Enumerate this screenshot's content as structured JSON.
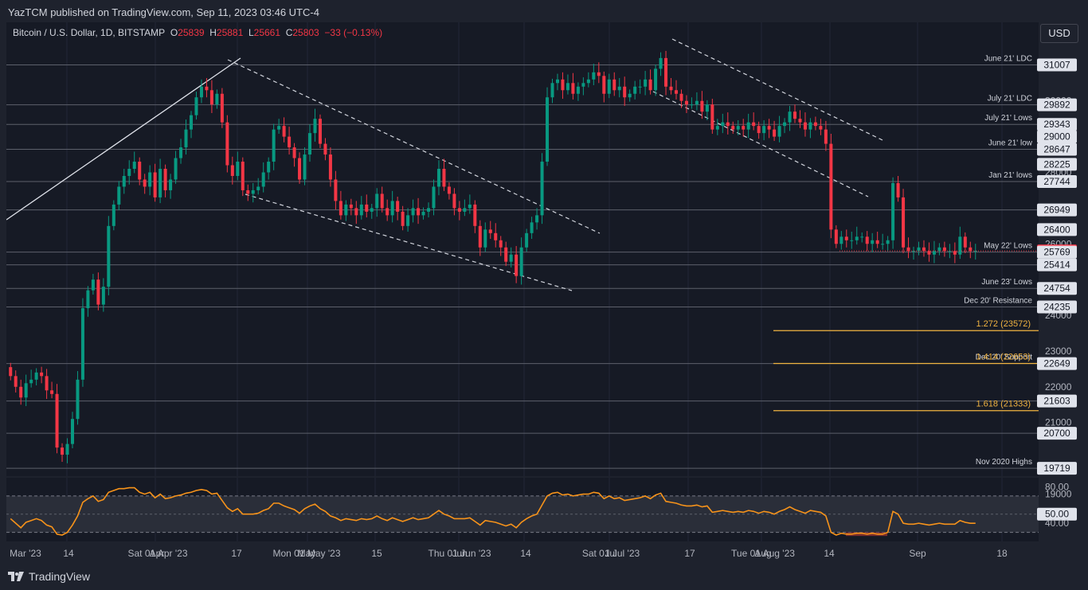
{
  "header": {
    "publisher": "YazTCM published on TradingView.com, Sep 11, 2023 03:46 UTC-4"
  },
  "legend": {
    "symbol": "Bitcoin / U.S. Dollar, 1D, BITSTAMP",
    "o_label": "O",
    "o": "25839",
    "h_label": "H",
    "h": "25881",
    "l_label": "L",
    "l": "25661",
    "c_label": "C",
    "c": "25803",
    "change": "−33 (−0.13%)"
  },
  "currency_button": "USD",
  "brand": "TradingView",
  "colors": {
    "up": "#089981",
    "down": "#f23645",
    "fib": "#f0b341",
    "rsi": "#f7931a",
    "level": "#787b86"
  },
  "chart_data": {
    "type": "candlestick",
    "price_axis": {
      "min": 19500,
      "max": 32200,
      "ticks": [
        30000,
        29000,
        28000,
        26000,
        24000,
        23000,
        22000,
        21000,
        19000
      ]
    },
    "time_axis": {
      "labels": [
        "Mar '23",
        "14",
        "Apr",
        "Sat 01 Apr '23",
        "17",
        "May",
        "Mon 01 May '23",
        "15",
        "Jun",
        "Thu 01 Jun '23",
        "14",
        "Jul",
        "Sat 01 Jul '23",
        "17",
        "Aug",
        "Tue 01 Aug '23",
        "14",
        "Sep",
        "18"
      ]
    },
    "last_price": 25803,
    "levels": [
      {
        "price": 31007,
        "label": "June 21' LDC"
      },
      {
        "price": 29892,
        "label": "July 21' LDC"
      },
      {
        "price": 29343,
        "label": "July 21' Lows"
      },
      {
        "price": 28647,
        "label": "June 21' low"
      },
      {
        "price": 27744,
        "label": "Jan 21' lows"
      },
      {
        "price": 26949,
        "label": ""
      },
      {
        "price": 25769,
        "label": "May 22' Lows"
      },
      {
        "price": 25414,
        "label": ""
      },
      {
        "price": 24754,
        "label": "June 23' Lows"
      },
      {
        "price": 24235,
        "label": "Dec 20' Resistance"
      },
      {
        "price": 22649,
        "label": "Dec 20' Support"
      },
      {
        "price": 21603,
        "label": ""
      },
      {
        "price": 20700,
        "label": ""
      },
      {
        "price": 19719,
        "label": "Nov 2020 Highs"
      }
    ],
    "price_boxes": [
      "31007",
      "29892",
      "29343",
      "29000",
      "28647",
      "28225",
      "27744",
      "26949",
      "26400",
      "25803",
      "25769",
      "25414",
      "24754",
      "24235",
      "22649",
      "21603",
      "20700",
      "19719"
    ],
    "fib_levels": [
      {
        "ratio": "1.272",
        "price": 23572,
        "label": "1.272 (23572)"
      },
      {
        "ratio": "1.414",
        "price": 22653,
        "label": "1.414 (22653)"
      },
      {
        "ratio": "1.618",
        "price": 21333,
        "label": "1.618 (21333)"
      }
    ],
    "closes": [
      22300,
      22000,
      21700,
      22100,
      22200,
      22400,
      22300,
      21900,
      21800,
      20300,
      20100,
      20400,
      21100,
      22200,
      24200,
      24700,
      25000,
      24300,
      24800,
      26500,
      27100,
      27600,
      27900,
      28100,
      28300,
      27800,
      27600,
      28000,
      27300,
      28100,
      27500,
      27800,
      28400,
      28700,
      29200,
      29600,
      30100,
      30400,
      30300,
      29900,
      30200,
      29400,
      28200,
      27900,
      28300,
      27500,
      27400,
      27500,
      27600,
      28000,
      28300,
      29200,
      29300,
      29000,
      28700,
      28400,
      27800,
      28500,
      29100,
      29500,
      28800,
      28500,
      27800,
      27200,
      26800,
      27100,
      27000,
      26800,
      27100,
      26900,
      27000,
      27400,
      27000,
      26800,
      27200,
      26900,
      26500,
      26800,
      27000,
      26800,
      26900,
      27000,
      27600,
      28100,
      27600,
      27400,
      27000,
      26900,
      27000,
      27100,
      26500,
      25900,
      26400,
      26300,
      26100,
      25900,
      25500,
      25700,
      25100,
      25900,
      26300,
      26600,
      26800,
      28300,
      30100,
      30500,
      30600,
      30300,
      30500,
      30200,
      30400,
      30500,
      30600,
      30800,
      30700,
      30200,
      30600,
      30300,
      30400,
      30100,
      30200,
      30400,
      30400,
      30600,
      30300,
      30900,
      31200,
      30400,
      30300,
      30200,
      30000,
      29900,
      29900,
      30000,
      29700,
      29900,
      29200,
      29300,
      29400,
      29300,
      29200,
      29300,
      29200,
      29400,
      29300,
      29100,
      29300,
      29200,
      29000,
      29300,
      29400,
      29700,
      29500,
      29400,
      29200,
      29400,
      29300,
      29200,
      28800,
      26400,
      26000,
      26200,
      26100,
      26100,
      26200,
      26200,
      26000,
      26100,
      26000,
      26000,
      26100,
      27700,
      27300,
      25900,
      25800,
      25800,
      25900,
      25800,
      25700,
      25800,
      25900,
      25800,
      25800,
      25700,
      26200,
      25900,
      25800,
      25803
    ],
    "rsi": {
      "levels": [
        "80.00",
        "50.00",
        "40.00"
      ],
      "upper": 70,
      "lower": 30,
      "values": [
        45,
        40,
        35,
        41,
        43,
        45,
        43,
        38,
        36,
        28,
        27,
        30,
        38,
        48,
        63,
        67,
        70,
        64,
        66,
        74,
        76,
        78,
        78,
        79,
        79,
        74,
        72,
        74,
        68,
        72,
        67,
        68,
        70,
        71,
        73,
        74,
        76,
        77,
        76,
        72,
        73,
        65,
        57,
        53,
        56,
        50,
        50,
        50,
        51,
        54,
        56,
        62,
        62,
        59,
        57,
        55,
        51,
        56,
        59,
        61,
        56,
        53,
        48,
        46,
        43,
        45,
        44,
        43,
        45,
        44,
        45,
        48,
        45,
        43,
        46,
        44,
        42,
        44,
        46,
        44,
        45,
        46,
        50,
        54,
        50,
        48,
        45,
        45,
        45,
        46,
        42,
        38,
        43,
        42,
        41,
        39,
        37,
        39,
        35,
        41,
        45,
        48,
        50,
        60,
        70,
        73,
        74,
        71,
        72,
        70,
        71,
        72,
        72,
        74,
        73,
        67,
        70,
        67,
        68,
        65,
        66,
        67,
        68,
        70,
        67,
        71,
        73,
        64,
        63,
        62,
        60,
        59,
        59,
        60,
        58,
        59,
        52,
        53,
        54,
        53,
        52,
        53,
        52,
        54,
        53,
        51,
        53,
        52,
        50,
        53,
        55,
        58,
        55,
        53,
        51,
        54,
        53,
        52,
        48,
        30,
        27,
        29,
        28,
        28,
        29,
        29,
        28,
        29,
        28,
        28,
        30,
        53,
        50,
        40,
        39,
        39,
        40,
        39,
        38,
        39,
        40,
        39,
        39,
        39,
        43,
        41,
        40,
        40
      ]
    }
  }
}
